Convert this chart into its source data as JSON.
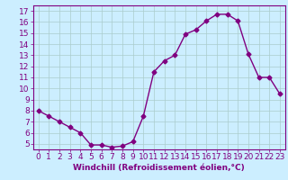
{
  "x": [
    0,
    1,
    2,
    3,
    4,
    5,
    6,
    7,
    8,
    9,
    10,
    11,
    12,
    13,
    14,
    15,
    16,
    17,
    18,
    19,
    20,
    21,
    22,
    23
  ],
  "y": [
    8.0,
    7.5,
    7.0,
    6.5,
    6.0,
    4.9,
    4.9,
    4.7,
    4.8,
    5.2,
    7.5,
    11.5,
    12.5,
    13.0,
    14.9,
    15.3,
    16.1,
    16.7,
    16.7,
    16.1,
    13.1,
    11.0,
    11.0,
    9.5
  ],
  "line_color": "#800080",
  "marker": "D",
  "marker_size": 2.5,
  "bg_color": "#cceeff",
  "grid_color": "#aacccc",
  "xlabel": "Windchill (Refroidissement éolien,°C)",
  "ylabel_ticks": [
    5,
    6,
    7,
    8,
    9,
    10,
    11,
    12,
    13,
    14,
    15,
    16,
    17
  ],
  "xlabel_ticks": [
    0,
    1,
    2,
    3,
    4,
    5,
    6,
    7,
    8,
    9,
    10,
    11,
    12,
    13,
    14,
    15,
    16,
    17,
    18,
    19,
    20,
    21,
    22,
    23
  ],
  "ylim": [
    4.5,
    17.5
  ],
  "xlim": [
    -0.5,
    23.5
  ],
  "xlabel_fontsize": 6.5,
  "tick_fontsize": 6.5,
  "tick_color": "#800080",
  "axis_color": "#800080",
  "linewidth": 1.0
}
